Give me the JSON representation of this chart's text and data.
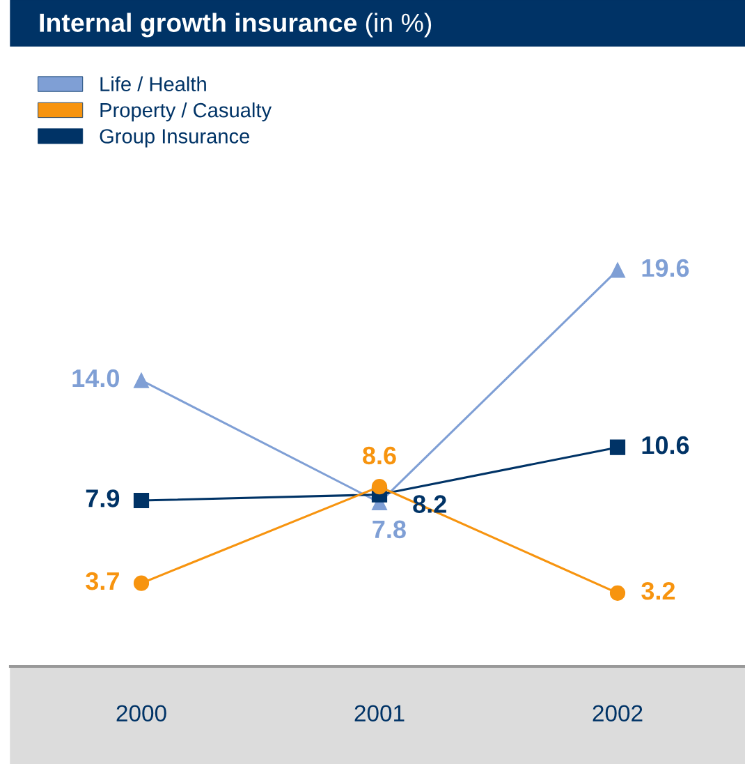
{
  "chart_data": {
    "type": "line",
    "title": "Internal growth insurance",
    "subtitle": "(in %)",
    "categories": [
      "2000",
      "2001",
      "2002"
    ],
    "series": [
      {
        "name": "Life / Health",
        "color": "#7f9fd5",
        "marker": "triangle",
        "values": [
          14.0,
          7.8,
          19.6
        ],
        "value_labels": [
          "14.0",
          "7.8",
          "19.6"
        ]
      },
      {
        "name": "Property / Casualty",
        "color": "#f7940f",
        "marker": "circle",
        "values": [
          3.7,
          8.6,
          3.2
        ],
        "value_labels": [
          "3.7",
          "8.6",
          "3.2"
        ]
      },
      {
        "name": "Group Insurance",
        "color": "#003366",
        "marker": "square",
        "values": [
          7.9,
          8.2,
          10.6
        ],
        "value_labels": [
          "7.9",
          "8.2",
          "10.6"
        ]
      }
    ],
    "legend": "top left",
    "grid": false,
    "line_style": "solid"
  }
}
